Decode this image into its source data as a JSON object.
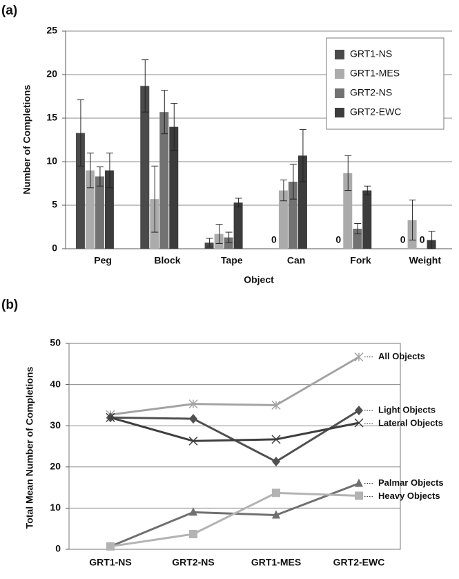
{
  "chart_data": [
    {
      "type": "bar",
      "label": "(a)",
      "xlabel": "Object",
      "ylabel": "Number of Completions",
      "categories": [
        "Peg",
        "Block",
        "Tape",
        "Can",
        "Fork",
        "Weight"
      ],
      "series": [
        {
          "name": "GRT1-NS",
          "color": "#4a4a4a",
          "values": [
            13.3,
            18.7,
            0.7,
            0,
            0,
            0
          ],
          "errors": [
            3.8,
            3.0,
            0.5,
            null,
            null,
            null
          ]
        },
        {
          "name": "GRT1-MES",
          "color": "#ababab",
          "values": [
            9.0,
            5.7,
            1.7,
            6.7,
            8.7,
            3.3
          ],
          "errors": [
            2.0,
            3.8,
            1.1,
            1.2,
            2.0,
            2.3
          ]
        },
        {
          "name": "GRT2-NS",
          "color": "#727272",
          "values": [
            8.3,
            15.7,
            1.3,
            7.7,
            2.3,
            0
          ],
          "errors": [
            1.1,
            2.5,
            0.6,
            2.0,
            0.6,
            null
          ]
        },
        {
          "name": "GRT2-EWC",
          "color": "#3c3c3c",
          "values": [
            9.0,
            14.0,
            5.3,
            10.7,
            6.7,
            1.0
          ],
          "errors": [
            2.0,
            2.7,
            0.5,
            3.0,
            0.5,
            1.0
          ]
        }
      ],
      "ylim": [
        0,
        25
      ],
      "yticks": [
        0,
        5,
        10,
        15,
        20,
        25
      ],
      "grid": true,
      "legend": "upper right"
    },
    {
      "type": "line",
      "label": "(b)",
      "ylabel": "Total Mean Number of Completions",
      "categories": [
        "GRT1-NS",
        "GRT2-NS",
        "GRT1-MES",
        "GRT2-EWC"
      ],
      "series": [
        {
          "name": "All Objects",
          "color": "#a3a3a3",
          "marker": "asterisk",
          "values": [
            32.7,
            35.3,
            35.0,
            46.7
          ]
        },
        {
          "name": "Light Objects",
          "color": "#505050",
          "marker": "diamond",
          "values": [
            32.0,
            31.7,
            21.3,
            33.7
          ]
        },
        {
          "name": "Lateral Objects",
          "color": "#3e3e3e",
          "marker": "x",
          "values": [
            32.0,
            26.3,
            26.7,
            30.7
          ]
        },
        {
          "name": "Palmar Objects",
          "color": "#707070",
          "marker": "triangle",
          "values": [
            0.7,
            9.0,
            8.3,
            16.0
          ]
        },
        {
          "name": "Heavy Objects",
          "color": "#b3b3b3",
          "marker": "square",
          "values": [
            0.7,
            3.7,
            13.7,
            13.0
          ]
        }
      ],
      "ylim": [
        0,
        50
      ],
      "yticks": [
        0,
        10,
        20,
        30,
        40,
        50
      ],
      "grid": true,
      "legend": "line-end"
    }
  ]
}
